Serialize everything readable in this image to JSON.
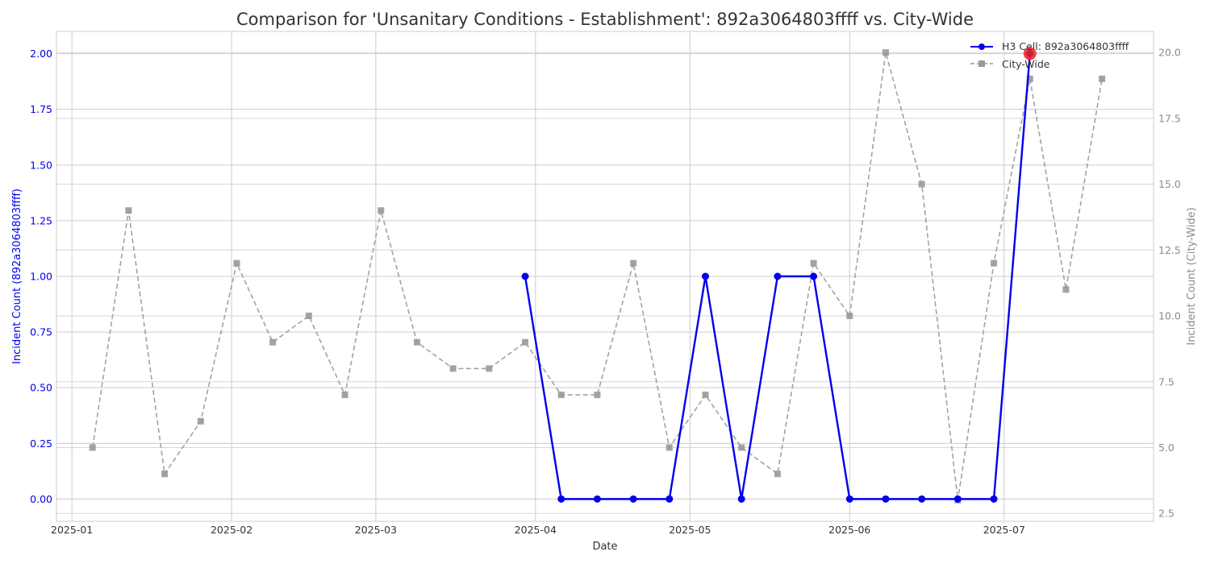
{
  "chart_data": {
    "type": "line",
    "title": "Comparison for 'Unsanitary Conditions - Establishment': 892a3064803ffff vs. City-Wide",
    "xlabel": "Date",
    "ylabel_left": "Incident Count (892a3064803ffff)",
    "ylabel_right": "Incident Count (City-Wide)",
    "x_range": [
      "2024-12-29",
      "2025-07-30"
    ],
    "x_ticks": [
      "2025-01-01",
      "2025-02-01",
      "2025-03-01",
      "2025-04-01",
      "2025-05-01",
      "2025-06-01",
      "2025-07-01"
    ],
    "x_tick_labels": [
      "2025-01",
      "2025-02",
      "2025-03",
      "2025-04",
      "2025-05",
      "2025-06",
      "2025-07"
    ],
    "ylim_left": [
      -0.1,
      2.1
    ],
    "yticks_left": [
      "0.00",
      "0.25",
      "0.50",
      "0.75",
      "1.00",
      "1.25",
      "1.50",
      "1.75",
      "2.00"
    ],
    "ylim_right": [
      2.2,
      20.8
    ],
    "yticks_right": [
      "2.5",
      "5.0",
      "7.5",
      "10.0",
      "12.5",
      "15.0",
      "17.5",
      "20.0"
    ],
    "grid": true,
    "legend_position": "top-right",
    "series": [
      {
        "name": "H3 Cell: 892a3064803ffff",
        "axis": "left",
        "color": "#0000ee",
        "style": "solid",
        "marker": "circle",
        "dates": [
          "2025-03-30",
          "2025-04-06",
          "2025-04-13",
          "2025-04-20",
          "2025-04-27",
          "2025-05-04",
          "2025-05-11",
          "2025-05-18",
          "2025-05-25",
          "2025-06-01",
          "2025-06-08",
          "2025-06-15",
          "2025-06-22",
          "2025-06-29",
          "2025-07-06"
        ],
        "values": [
          1,
          0,
          0,
          0,
          0,
          1,
          0,
          1,
          1,
          0,
          0,
          0,
          0,
          0,
          2
        ]
      },
      {
        "name": "City-Wide",
        "axis": "right",
        "color": "#999999",
        "style": "dashed",
        "marker": "square",
        "dates": [
          "2025-01-05",
          "2025-01-12",
          "2025-01-19",
          "2025-01-26",
          "2025-02-02",
          "2025-02-09",
          "2025-02-16",
          "2025-02-23",
          "2025-03-02",
          "2025-03-09",
          "2025-03-16",
          "2025-03-23",
          "2025-03-30",
          "2025-04-06",
          "2025-04-13",
          "2025-04-20",
          "2025-04-27",
          "2025-05-04",
          "2025-05-11",
          "2025-05-18",
          "2025-05-25",
          "2025-06-01",
          "2025-06-08",
          "2025-06-15",
          "2025-06-22",
          "2025-06-29",
          "2025-07-06",
          "2025-07-13",
          "2025-07-20"
        ],
        "values": [
          5,
          14,
          4,
          6,
          12,
          9,
          10,
          7,
          14,
          9,
          8,
          8,
          9,
          7,
          7,
          12,
          5,
          7,
          5,
          4,
          12,
          10,
          20,
          15,
          3,
          12,
          19,
          11,
          19
        ]
      }
    ],
    "highlight": {
      "date": "2025-07-06",
      "value": 2,
      "color": "#ee2222"
    }
  }
}
